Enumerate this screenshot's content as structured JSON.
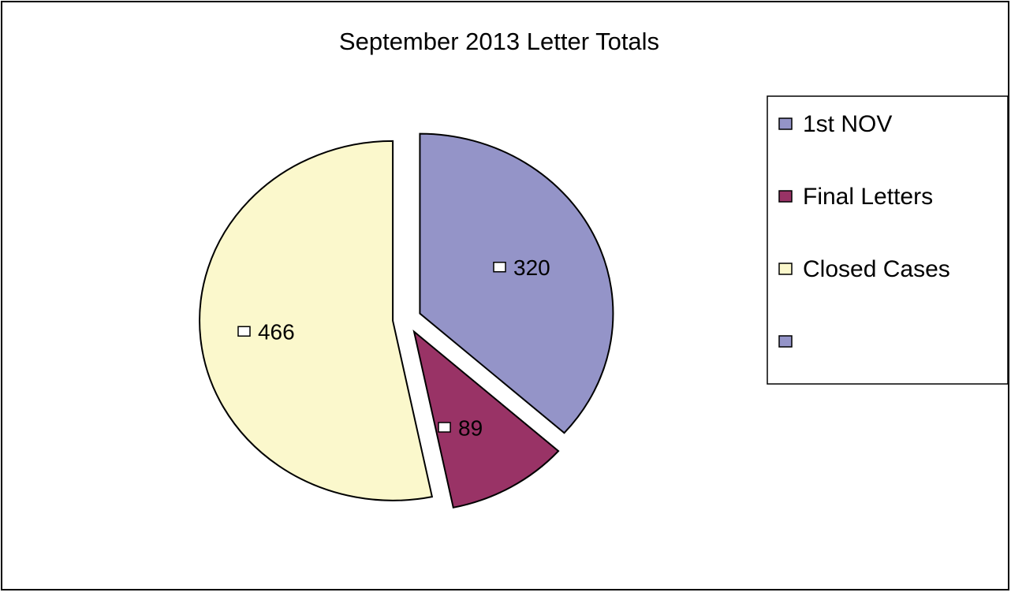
{
  "chart_data": {
    "type": "pie",
    "title": "September 2013 Letter Totals",
    "categories": [
      "1st NOV",
      "Final Letters",
      "Closed Cases",
      null
    ],
    "values": [
      320,
      89,
      466,
      null
    ],
    "colors": [
      "#9494c8",
      "#993366",
      "#fbf8cc",
      "#9494c8"
    ],
    "legend": "right"
  }
}
